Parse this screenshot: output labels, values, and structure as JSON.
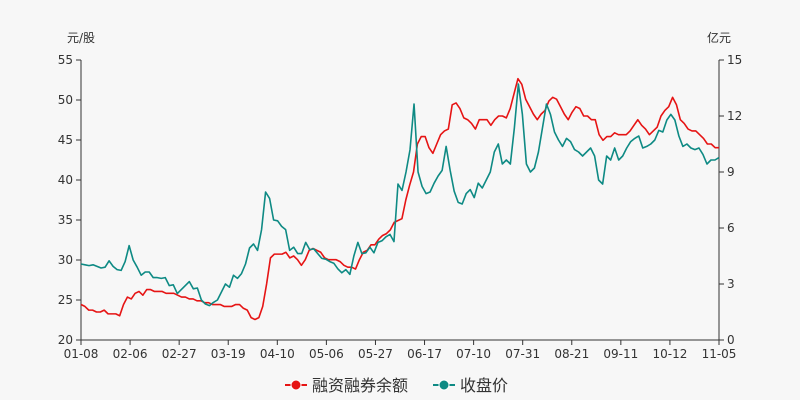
{
  "chart_data": {
    "type": "line",
    "y_left_unit": "元/股",
    "y_right_unit": "亿元",
    "ylim_left": [
      20,
      55
    ],
    "ylim_right": [
      0,
      15
    ],
    "y_left_ticks": [
      20,
      25,
      30,
      35,
      40,
      45,
      50,
      55
    ],
    "y_right_ticks": [
      0,
      3,
      6,
      9,
      12,
      15
    ],
    "x_tick_labels": [
      "01-08",
      "02-06",
      "02-27",
      "03-19",
      "04-10",
      "05-06",
      "05-27",
      "06-17",
      "07-10",
      "07-31",
      "08-21",
      "09-11",
      "10-12",
      "11-05"
    ],
    "legend_position": "bottom",
    "grid": false,
    "colors": {
      "balance": "#e61414",
      "price": "#0e8a84"
    },
    "series": [
      {
        "name": "融资融券余额",
        "axis": "right",
        "values": [
          1.9,
          1.8,
          1.6,
          1.6,
          1.5,
          1.5,
          1.6,
          1.4,
          1.4,
          1.4,
          1.3,
          1.9,
          2.3,
          2.2,
          2.5,
          2.6,
          2.4,
          2.7,
          2.7,
          2.6,
          2.6,
          2.6,
          2.5,
          2.5,
          2.5,
          2.4,
          2.3,
          2.3,
          2.2,
          2.2,
          2.1,
          2.1,
          2.0,
          2.0,
          1.9,
          1.9,
          1.9,
          1.8,
          1.8,
          1.8,
          1.9,
          1.9,
          1.7,
          1.6,
          1.2,
          1.1,
          1.2,
          1.8,
          3.0,
          4.4,
          4.6,
          4.6,
          4.6,
          4.7,
          4.4,
          4.5,
          4.3,
          4.0,
          4.3,
          4.8,
          4.9,
          4.8,
          4.7,
          4.4,
          4.3,
          4.3,
          4.3,
          4.2,
          4.0,
          3.9,
          3.9,
          3.8,
          4.3,
          4.7,
          4.8,
          5.1,
          5.1,
          5.4,
          5.6,
          5.7,
          5.9,
          6.3,
          6.4,
          6.5,
          7.5,
          8.3,
          9.0,
          10.5,
          10.9,
          10.9,
          10.3,
          10.0,
          10.5,
          11.0,
          11.2,
          11.3,
          12.6,
          12.7,
          12.4,
          11.9,
          11.8,
          11.6,
          11.3,
          11.8,
          11.8,
          11.8,
          11.5,
          11.8,
          12.0,
          12.0,
          11.9,
          12.4,
          13.2,
          14.0,
          13.7,
          12.9,
          12.5,
          12.1,
          11.8,
          12.1,
          12.3,
          12.8,
          13.0,
          12.9,
          12.5,
          12.1,
          11.8,
          12.2,
          12.5,
          12.4,
          12.0,
          12.0,
          11.8,
          11.8,
          11.0,
          10.7,
          10.9,
          10.9,
          11.1,
          11.0,
          11.0,
          11.0,
          11.2,
          11.5,
          11.8,
          11.5,
          11.3,
          11.0,
          11.2,
          11.4,
          12.0,
          12.3,
          12.5,
          13.0,
          12.6,
          11.8,
          11.6,
          11.3,
          11.2,
          11.2,
          11.0,
          10.8,
          10.5,
          10.5,
          10.3,
          10.3
        ]
      },
      {
        "name": "收盘价",
        "axis": "left",
        "values": [
          29.5,
          29.4,
          29.3,
          29.4,
          29.2,
          29.0,
          29.1,
          29.9,
          29.2,
          28.8,
          28.7,
          29.8,
          31.8,
          30.0,
          29.1,
          28.1,
          28.5,
          28.5,
          27.8,
          27.8,
          27.7,
          27.8,
          26.8,
          26.9,
          25.8,
          26.3,
          26.8,
          27.3,
          26.4,
          26.5,
          25.0,
          24.5,
          24.3,
          24.7,
          25.0,
          26.0,
          27.0,
          26.6,
          28.1,
          27.7,
          28.3,
          29.5,
          31.5,
          32.0,
          31.2,
          33.8,
          38.5,
          37.7,
          35.0,
          34.9,
          34.2,
          33.8,
          31.2,
          31.6,
          30.8,
          30.8,
          32.2,
          31.3,
          31.4,
          30.8,
          30.2,
          30.1,
          29.8,
          29.6,
          28.9,
          28.4,
          28.8,
          28.2,
          30.5,
          32.2,
          30.8,
          30.9,
          31.6,
          30.9,
          32.2,
          32.4,
          32.9,
          33.2,
          32.3,
          39.5,
          38.7,
          41.0,
          43.8,
          49.5,
          41.0,
          39.2,
          38.3,
          38.5,
          39.6,
          40.5,
          41.2,
          44.2,
          41.2,
          38.6,
          37.2,
          37.0,
          38.3,
          38.8,
          37.8,
          39.6,
          39.0,
          40.0,
          41.0,
          43.5,
          44.5,
          42.0,
          42.5,
          42.0,
          46.5,
          52.0,
          48.2,
          42.0,
          41.0,
          41.5,
          43.5,
          46.5,
          49.5,
          48.2,
          46.0,
          45.0,
          44.2,
          45.2,
          44.8,
          43.8,
          43.5,
          43.0,
          43.5,
          44.0,
          43.0,
          40.0,
          39.5,
          43.0,
          42.5,
          44.0,
          42.5,
          43.0,
          44.0,
          44.8,
          45.2,
          45.5,
          44.0,
          44.2,
          44.5,
          45.0,
          46.2,
          46.0,
          47.5,
          48.2,
          47.5,
          45.5,
          44.2,
          44.5,
          44.0,
          43.8,
          44.0,
          43.2,
          42.0,
          42.5,
          42.5,
          42.8
        ]
      }
    ]
  }
}
